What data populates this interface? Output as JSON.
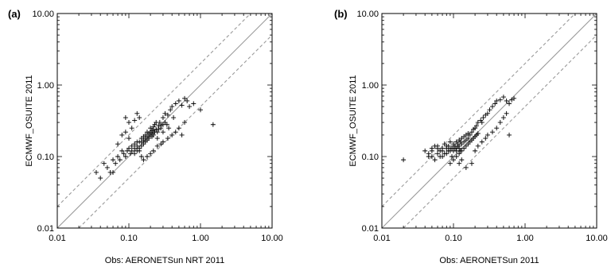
{
  "chart_data": [
    {
      "type": "scatter",
      "panel_label": "(a)",
      "xlabel": "Obs: AERONETSun NRT 2011",
      "ylabel": "ECMWF_OSUITE 2011",
      "xscale": "log",
      "yscale": "log",
      "xlim": [
        0.01,
        10.0
      ],
      "ylim": [
        0.01,
        10.0
      ],
      "xticks": [
        "0.01",
        "0.10",
        "1.00",
        "10.00"
      ],
      "yticks": [
        "0.01",
        "0.10",
        "1.00",
        "10.00"
      ],
      "grid": false,
      "marker": "+",
      "reference_lines": [
        {
          "kind": "1:1",
          "style": "solid",
          "color": "#9a9a9a"
        },
        {
          "kind": "factor 2 above",
          "style": "dashed",
          "color": "#9a9a9a"
        },
        {
          "kind": "factor 2 below",
          "style": "dashed",
          "color": "#9a9a9a"
        }
      ],
      "points": [
        [
          0.04,
          0.05
        ],
        [
          0.05,
          0.07
        ],
        [
          0.06,
          0.09
        ],
        [
          0.07,
          0.1
        ],
        [
          0.08,
          0.12
        ],
        [
          0.09,
          0.1
        ],
        [
          0.1,
          0.13
        ],
        [
          0.11,
          0.12
        ],
        [
          0.12,
          0.15
        ],
        [
          0.13,
          0.14
        ],
        [
          0.14,
          0.12
        ],
        [
          0.15,
          0.18
        ],
        [
          0.16,
          0.17
        ],
        [
          0.17,
          0.2
        ],
        [
          0.18,
          0.22
        ],
        [
          0.19,
          0.19
        ],
        [
          0.2,
          0.25
        ],
        [
          0.21,
          0.23
        ],
        [
          0.22,
          0.26
        ],
        [
          0.23,
          0.28
        ],
        [
          0.24,
          0.3
        ],
        [
          0.25,
          0.22
        ],
        [
          0.26,
          0.27
        ],
        [
          0.27,
          0.3
        ],
        [
          0.28,
          0.25
        ],
        [
          0.3,
          0.35
        ],
        [
          0.32,
          0.4
        ],
        [
          0.35,
          0.38
        ],
        [
          0.38,
          0.45
        ],
        [
          0.4,
          0.5
        ],
        [
          0.42,
          0.35
        ],
        [
          0.45,
          0.55
        ],
        [
          0.5,
          0.6
        ],
        [
          0.55,
          0.52
        ],
        [
          0.6,
          0.65
        ],
        [
          0.65,
          0.6
        ],
        [
          0.7,
          0.5
        ],
        [
          0.8,
          0.55
        ],
        [
          1.0,
          0.45
        ],
        [
          1.5,
          0.28
        ],
        [
          0.09,
          0.35
        ],
        [
          0.1,
          0.3
        ],
        [
          0.12,
          0.32
        ],
        [
          0.11,
          0.25
        ],
        [
          0.13,
          0.4
        ],
        [
          0.14,
          0.35
        ],
        [
          0.08,
          0.2
        ],
        [
          0.09,
          0.22
        ],
        [
          0.1,
          0.18
        ],
        [
          0.07,
          0.15
        ],
        [
          0.15,
          0.1
        ],
        [
          0.16,
          0.09
        ],
        [
          0.18,
          0.1
        ],
        [
          0.2,
          0.11
        ],
        [
          0.22,
          0.12
        ],
        [
          0.25,
          0.14
        ],
        [
          0.28,
          0.15
        ],
        [
          0.3,
          0.16
        ],
        [
          0.35,
          0.18
        ],
        [
          0.4,
          0.2
        ],
        [
          0.45,
          0.22
        ],
        [
          0.5,
          0.25
        ],
        [
          0.55,
          0.2
        ],
        [
          0.6,
          0.3
        ],
        [
          0.12,
          0.11
        ],
        [
          0.13,
          0.12
        ],
        [
          0.14,
          0.13
        ],
        [
          0.15,
          0.14
        ],
        [
          0.16,
          0.15
        ],
        [
          0.17,
          0.16
        ],
        [
          0.18,
          0.17
        ],
        [
          0.19,
          0.18
        ],
        [
          0.2,
          0.2
        ],
        [
          0.21,
          0.21
        ],
        [
          0.22,
          0.2
        ],
        [
          0.23,
          0.22
        ],
        [
          0.24,
          0.24
        ],
        [
          0.26,
          0.24
        ],
        [
          0.28,
          0.27
        ],
        [
          0.3,
          0.28
        ],
        [
          0.32,
          0.3
        ],
        [
          0.34,
          0.28
        ],
        [
          0.11,
          0.14
        ],
        [
          0.12,
          0.13
        ],
        [
          0.13,
          0.16
        ],
        [
          0.14,
          0.16
        ],
        [
          0.15,
          0.16
        ],
        [
          0.16,
          0.19
        ],
        [
          0.17,
          0.18
        ],
        [
          0.18,
          0.19
        ],
        [
          0.19,
          0.21
        ],
        [
          0.2,
          0.22
        ],
        [
          0.21,
          0.19
        ],
        [
          0.22,
          0.24
        ],
        [
          0.06,
          0.06
        ],
        [
          0.065,
          0.08
        ],
        [
          0.075,
          0.09
        ],
        [
          0.085,
          0.11
        ],
        [
          0.095,
          0.12
        ],
        [
          0.105,
          0.11
        ],
        [
          0.045,
          0.08
        ],
        [
          0.055,
          0.06
        ],
        [
          0.035,
          0.06
        ],
        [
          0.25,
          0.18
        ],
        [
          0.3,
          0.22
        ],
        [
          0.36,
          0.25
        ]
      ]
    },
    {
      "type": "scatter",
      "panel_label": "(b)",
      "xlabel": "Obs: AERONETSun 2011",
      "ylabel": "ECMWF_OSUITE 2011",
      "xscale": "log",
      "yscale": "log",
      "xlim": [
        0.01,
        10.0
      ],
      "ylim": [
        0.01,
        10.0
      ],
      "xticks": [
        "0.01",
        "0.10",
        "1.00",
        "10.00"
      ],
      "yticks": [
        "0.01",
        "0.10",
        "1.00",
        "10.00"
      ],
      "grid": false,
      "marker": "+",
      "reference_lines": [
        {
          "kind": "1:1",
          "style": "solid",
          "color": "#9a9a9a"
        },
        {
          "kind": "factor 2 above",
          "style": "dashed",
          "color": "#9a9a9a"
        },
        {
          "kind": "factor 2 below",
          "style": "dashed",
          "color": "#9a9a9a"
        }
      ],
      "points": [
        [
          0.02,
          0.09
        ],
        [
          0.04,
          0.12
        ],
        [
          0.045,
          0.11
        ],
        [
          0.05,
          0.1
        ],
        [
          0.05,
          0.13
        ],
        [
          0.055,
          0.09
        ],
        [
          0.06,
          0.11
        ],
        [
          0.06,
          0.14
        ],
        [
          0.065,
          0.12
        ],
        [
          0.07,
          0.1
        ],
        [
          0.07,
          0.13
        ],
        [
          0.075,
          0.15
        ],
        [
          0.08,
          0.11
        ],
        [
          0.08,
          0.14
        ],
        [
          0.085,
          0.12
        ],
        [
          0.09,
          0.13
        ],
        [
          0.09,
          0.16
        ],
        [
          0.095,
          0.1
        ],
        [
          0.1,
          0.12
        ],
        [
          0.1,
          0.15
        ],
        [
          0.105,
          0.14
        ],
        [
          0.11,
          0.13
        ],
        [
          0.11,
          0.16
        ],
        [
          0.115,
          0.15
        ],
        [
          0.12,
          0.14
        ],
        [
          0.12,
          0.17
        ],
        [
          0.125,
          0.16
        ],
        [
          0.13,
          0.15
        ],
        [
          0.13,
          0.18
        ],
        [
          0.14,
          0.16
        ],
        [
          0.14,
          0.19
        ],
        [
          0.15,
          0.17
        ],
        [
          0.15,
          0.2
        ],
        [
          0.16,
          0.18
        ],
        [
          0.16,
          0.21
        ],
        [
          0.17,
          0.2
        ],
        [
          0.18,
          0.22
        ],
        [
          0.19,
          0.24
        ],
        [
          0.2,
          0.25
        ],
        [
          0.21,
          0.27
        ],
        [
          0.22,
          0.3
        ],
        [
          0.24,
          0.32
        ],
        [
          0.26,
          0.35
        ],
        [
          0.28,
          0.38
        ],
        [
          0.3,
          0.4
        ],
        [
          0.32,
          0.45
        ],
        [
          0.35,
          0.5
        ],
        [
          0.38,
          0.55
        ],
        [
          0.4,
          0.6
        ],
        [
          0.45,
          0.62
        ],
        [
          0.5,
          0.68
        ],
        [
          0.55,
          0.6
        ],
        [
          0.6,
          0.55
        ],
        [
          0.65,
          0.62
        ],
        [
          0.7,
          0.65
        ],
        [
          0.2,
          0.12
        ],
        [
          0.22,
          0.14
        ],
        [
          0.25,
          0.16
        ],
        [
          0.28,
          0.18
        ],
        [
          0.3,
          0.2
        ],
        [
          0.35,
          0.22
        ],
        [
          0.4,
          0.25
        ],
        [
          0.45,
          0.3
        ],
        [
          0.5,
          0.35
        ],
        [
          0.55,
          0.4
        ],
        [
          0.6,
          0.2
        ],
        [
          0.12,
          0.08
        ],
        [
          0.13,
          0.09
        ],
        [
          0.15,
          0.07
        ],
        [
          0.18,
          0.08
        ],
        [
          0.09,
          0.08
        ],
        [
          0.1,
          0.09
        ],
        [
          0.11,
          0.1
        ],
        [
          0.12,
          0.11
        ],
        [
          0.13,
          0.12
        ],
        [
          0.14,
          0.13
        ],
        [
          0.15,
          0.14
        ],
        [
          0.16,
          0.15
        ],
        [
          0.17,
          0.16
        ],
        [
          0.18,
          0.17
        ],
        [
          0.19,
          0.18
        ],
        [
          0.2,
          0.19
        ],
        [
          0.21,
          0.2
        ],
        [
          0.22,
          0.21
        ],
        [
          0.07,
          0.12
        ],
        [
          0.075,
          0.11
        ],
        [
          0.08,
          0.13
        ],
        [
          0.085,
          0.14
        ],
        [
          0.09,
          0.12
        ],
        [
          0.095,
          0.13
        ],
        [
          0.1,
          0.14
        ],
        [
          0.105,
          0.13
        ],
        [
          0.11,
          0.12
        ],
        [
          0.115,
          0.14
        ],
        [
          0.12,
          0.13
        ],
        [
          0.125,
          0.12
        ],
        [
          0.05,
          0.12
        ],
        [
          0.055,
          0.14
        ],
        [
          0.06,
          0.13
        ],
        [
          0.065,
          0.1
        ],
        [
          0.045,
          0.1
        ],
        [
          0.25,
          0.3
        ]
      ]
    }
  ]
}
